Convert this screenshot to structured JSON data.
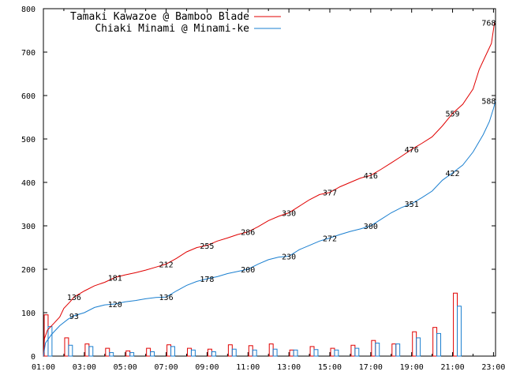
{
  "chart_data": {
    "type": "line",
    "x_tick_labels": [
      "01:00",
      "03:00",
      "05:00",
      "07:00",
      "09:00",
      "11:00",
      "13:00",
      "15:00",
      "17:00",
      "19:00",
      "21:00",
      "23:00"
    ],
    "y_tick_labels": [
      "0",
      "100",
      "200",
      "300",
      "400",
      "500",
      "600",
      "700",
      "800"
    ],
    "xlim": [
      1,
      23.1
    ],
    "ylim": [
      0,
      800
    ],
    "grid": false,
    "legend_position": "top-left",
    "series": [
      {
        "name": "Tamaki Kawazoe @ Bamboo Blade",
        "color": "#e00000",
        "cumulative": [
          [
            1.0,
            0
          ],
          [
            1.05,
            40
          ],
          [
            1.2,
            60
          ],
          [
            1.5,
            75
          ],
          [
            1.8,
            90
          ],
          [
            2.0,
            110
          ],
          [
            2.3,
            125
          ],
          [
            2.5,
            136
          ],
          [
            3.0,
            150
          ],
          [
            3.5,
            162
          ],
          [
            4.0,
            170
          ],
          [
            4.5,
            181
          ],
          [
            5.0,
            187
          ],
          [
            5.5,
            192
          ],
          [
            6.0,
            198
          ],
          [
            6.5,
            205
          ],
          [
            7.0,
            212
          ],
          [
            7.5,
            225
          ],
          [
            8.0,
            240
          ],
          [
            8.5,
            250
          ],
          [
            9.0,
            255
          ],
          [
            9.5,
            265
          ],
          [
            10.0,
            272
          ],
          [
            10.5,
            280
          ],
          [
            11.0,
            286
          ],
          [
            11.5,
            298
          ],
          [
            12.0,
            312
          ],
          [
            12.5,
            322
          ],
          [
            13.0,
            330
          ],
          [
            13.5,
            345
          ],
          [
            14.0,
            360
          ],
          [
            14.5,
            372
          ],
          [
            15.0,
            377
          ],
          [
            15.5,
            390
          ],
          [
            16.0,
            400
          ],
          [
            16.5,
            410
          ],
          [
            17.0,
            416
          ],
          [
            17.5,
            430
          ],
          [
            18.0,
            445
          ],
          [
            18.5,
            460
          ],
          [
            19.0,
            476
          ],
          [
            19.5,
            490
          ],
          [
            20.0,
            505
          ],
          [
            20.5,
            530
          ],
          [
            21.0,
            559
          ],
          [
            21.5,
            580
          ],
          [
            22.0,
            615
          ],
          [
            22.3,
            660
          ],
          [
            22.6,
            690
          ],
          [
            22.9,
            720
          ],
          [
            23.05,
            768
          ]
        ],
        "labels": [
          {
            "x": 2.5,
            "y": 136,
            "text": "136"
          },
          {
            "x": 4.5,
            "y": 181,
            "text": "181"
          },
          {
            "x": 7.0,
            "y": 212,
            "text": "212"
          },
          {
            "x": 9.0,
            "y": 255,
            "text": "255"
          },
          {
            "x": 11.0,
            "y": 286,
            "text": "286"
          },
          {
            "x": 13.0,
            "y": 330,
            "text": "330"
          },
          {
            "x": 15.0,
            "y": 377,
            "text": "377"
          },
          {
            "x": 17.0,
            "y": 416,
            "text": "416"
          },
          {
            "x": 19.0,
            "y": 476,
            "text": "476"
          },
          {
            "x": 21.0,
            "y": 559,
            "text": "559"
          },
          {
            "x": 23.0,
            "y": 768,
            "text": "768"
          }
        ],
        "bars": [
          95,
          0,
          42,
          0,
          28,
          0,
          18,
          0,
          12,
          0,
          18,
          0,
          26,
          0,
          18,
          0,
          16,
          0,
          26,
          0,
          24,
          0,
          28,
          0,
          14,
          0,
          22,
          0,
          18,
          0,
          25,
          0,
          36,
          0,
          28,
          0,
          56,
          0,
          66,
          0,
          145,
          0
        ]
      },
      {
        "name": "Chiaki Minami @ Minami-ke",
        "color": "#1a7fd0",
        "cumulative": [
          [
            1.0,
            0
          ],
          [
            1.1,
            30
          ],
          [
            1.4,
            50
          ],
          [
            1.8,
            70
          ],
          [
            2.2,
            85
          ],
          [
            2.5,
            93
          ],
          [
            3.0,
            100
          ],
          [
            3.5,
            112
          ],
          [
            4.0,
            118
          ],
          [
            4.5,
            120
          ],
          [
            5.0,
            125
          ],
          [
            5.5,
            128
          ],
          [
            6.0,
            132
          ],
          [
            6.5,
            135
          ],
          [
            7.0,
            136
          ],
          [
            7.5,
            150
          ],
          [
            8.0,
            163
          ],
          [
            8.5,
            172
          ],
          [
            9.0,
            178
          ],
          [
            9.5,
            183
          ],
          [
            10.0,
            190
          ],
          [
            10.5,
            195
          ],
          [
            11.0,
            200
          ],
          [
            11.5,
            212
          ],
          [
            12.0,
            222
          ],
          [
            12.5,
            228
          ],
          [
            13.0,
            230
          ],
          [
            13.5,
            245
          ],
          [
            14.0,
            255
          ],
          [
            14.5,
            265
          ],
          [
            15.0,
            272
          ],
          [
            15.5,
            280
          ],
          [
            16.0,
            287
          ],
          [
            16.5,
            293
          ],
          [
            17.0,
            300
          ],
          [
            17.5,
            315
          ],
          [
            18.0,
            330
          ],
          [
            18.5,
            342
          ],
          [
            19.0,
            351
          ],
          [
            19.5,
            365
          ],
          [
            20.0,
            380
          ],
          [
            20.5,
            405
          ],
          [
            21.0,
            422
          ],
          [
            21.5,
            440
          ],
          [
            22.0,
            470
          ],
          [
            22.5,
            510
          ],
          [
            22.8,
            540
          ],
          [
            23.0,
            570
          ],
          [
            23.1,
            588
          ]
        ],
        "labels": [
          {
            "x": 2.5,
            "y": 93,
            "text": "93"
          },
          {
            "x": 4.5,
            "y": 120,
            "text": "120"
          },
          {
            "x": 7.0,
            "y": 136,
            "text": "136"
          },
          {
            "x": 9.0,
            "y": 178,
            "text": "178"
          },
          {
            "x": 11.0,
            "y": 200,
            "text": "200"
          },
          {
            "x": 13.0,
            "y": 230,
            "text": "230"
          },
          {
            "x": 15.0,
            "y": 272,
            "text": "272"
          },
          {
            "x": 17.0,
            "y": 300,
            "text": "300"
          },
          {
            "x": 19.0,
            "y": 351,
            "text": "351"
          },
          {
            "x": 21.0,
            "y": 422,
            "text": "422"
          },
          {
            "x": 23.0,
            "y": 588,
            "text": "588"
          }
        ],
        "bars": [
          68,
          0,
          25,
          0,
          22,
          0,
          8,
          0,
          8,
          0,
          10,
          0,
          22,
          0,
          14,
          0,
          10,
          0,
          16,
          0,
          14,
          0,
          16,
          0,
          14,
          0,
          15,
          0,
          14,
          0,
          18,
          0,
          30,
          0,
          28,
          0,
          42,
          0,
          52,
          0,
          115,
          0
        ]
      }
    ]
  }
}
